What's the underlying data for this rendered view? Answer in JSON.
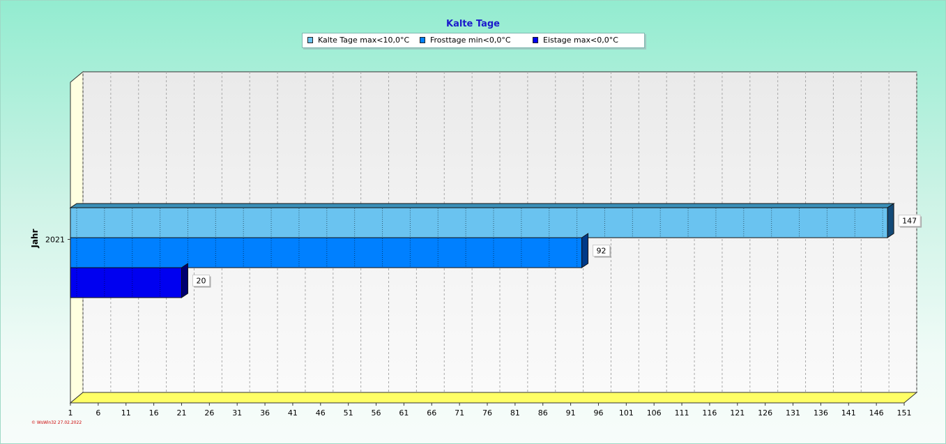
{
  "chart_data": {
    "type": "bar",
    "orientation": "horizontal",
    "title": "Kalte Tage",
    "ylabel": "Jahr",
    "xlabel": "",
    "categories": [
      "2021"
    ],
    "series": [
      {
        "name": "Kalte Tage max<10,0°C",
        "values": [
          147
        ],
        "color": "#6ac3f0"
      },
      {
        "name": "Frosttage min<0,0°C",
        "values": [
          92
        ],
        "color": "#0080ff"
      },
      {
        "name": "Eistage max<0,0°C",
        "values": [
          20
        ],
        "color": "#0000f0"
      }
    ],
    "xlim": [
      1,
      151
    ],
    "xticks": [
      1,
      6,
      11,
      16,
      21,
      26,
      31,
      36,
      41,
      46,
      51,
      56,
      61,
      66,
      71,
      76,
      81,
      86,
      91,
      96,
      101,
      106,
      111,
      116,
      121,
      126,
      131,
      136,
      141,
      146,
      151
    ],
    "legend_position": "top",
    "grid": true,
    "three_d": true
  },
  "footer": {
    "credit": "© WsWin32  27.02.2022"
  }
}
